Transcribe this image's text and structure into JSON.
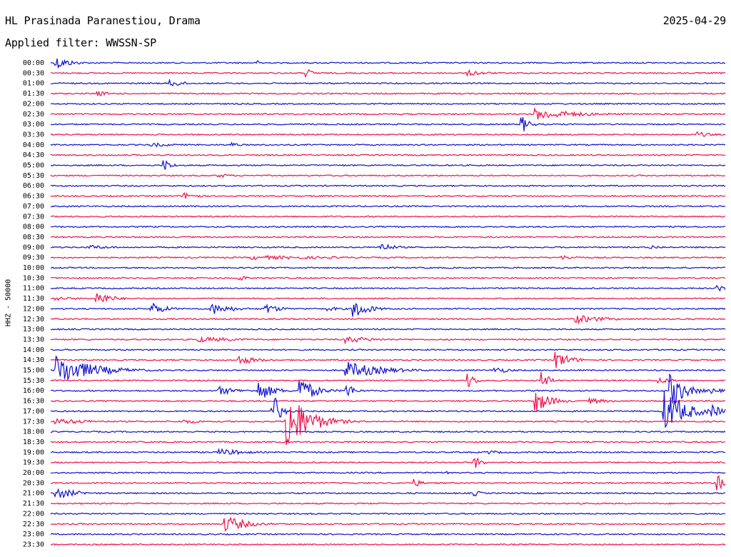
{
  "header": {
    "station": "HL Prasinada Paranestiou, Drama",
    "date": "2025-04-29",
    "filter": "Applied filter: WWSSN-SP"
  },
  "chart_data": {
    "type": "line",
    "title": "HL Prasinada Paranestiou, Drama",
    "ylabel": "HHZ - 50000",
    "colors": [
      "#1010d0",
      "#f0104a"
    ],
    "rows": [
      {
        "label": "00:00",
        "color": "#1010d0",
        "events": [
          {
            "t": 0.01,
            "amp": 9,
            "w": 0.02
          },
          {
            "t": 0.31,
            "amp": 3,
            "w": 0.01
          }
        ]
      },
      {
        "label": "00:30",
        "color": "#f0104a",
        "events": [
          {
            "t": 0.38,
            "amp": 6,
            "w": 0.01
          },
          {
            "t": 0.62,
            "amp": 4,
            "w": 0.03
          }
        ]
      },
      {
        "label": "01:00",
        "color": "#1010d0",
        "events": [
          {
            "t": 0.18,
            "amp": 5,
            "w": 0.02
          }
        ]
      },
      {
        "label": "01:30",
        "color": "#f0104a",
        "events": [
          {
            "t": 0.07,
            "amp": 4,
            "w": 0.02
          }
        ]
      },
      {
        "label": "02:00",
        "color": "#1010d0",
        "events": []
      },
      {
        "label": "02:30",
        "color": "#f0104a",
        "events": [
          {
            "t": 0.72,
            "amp": 8,
            "w": 0.06
          }
        ]
      },
      {
        "label": "03:00",
        "color": "#1010d0",
        "events": [
          {
            "t": 0.7,
            "amp": 11,
            "w": 0.01
          }
        ]
      },
      {
        "label": "03:30",
        "color": "#f0104a",
        "events": [
          {
            "t": 0.96,
            "amp": 4,
            "w": 0.02
          }
        ]
      },
      {
        "label": "04:00",
        "color": "#1010d0",
        "events": [
          {
            "t": 0.15,
            "amp": 3,
            "w": 0.04
          },
          {
            "t": 0.27,
            "amp": 4,
            "w": 0.01
          }
        ]
      },
      {
        "label": "04:30",
        "color": "#f0104a",
        "events": []
      },
      {
        "label": "05:00",
        "color": "#1010d0",
        "events": [
          {
            "t": 0.17,
            "amp": 8,
            "w": 0.01
          }
        ]
      },
      {
        "label": "05:30",
        "color": "#f0104a",
        "events": [
          {
            "t": 0.25,
            "amp": 3,
            "w": 0.02
          }
        ]
      },
      {
        "label": "06:00",
        "color": "#1010d0",
        "events": []
      },
      {
        "label": "06:30",
        "color": "#f0104a",
        "events": [
          {
            "t": 0.2,
            "amp": 5,
            "w": 0.02
          }
        ]
      },
      {
        "label": "07:00",
        "color": "#1010d0",
        "events": []
      },
      {
        "label": "07:30",
        "color": "#f0104a",
        "events": []
      },
      {
        "label": "08:00",
        "color": "#1010d0",
        "events": []
      },
      {
        "label": "08:30",
        "color": "#f0104a",
        "events": []
      },
      {
        "label": "09:00",
        "color": "#1010d0",
        "events": [
          {
            "t": 0.06,
            "amp": 3,
            "w": 0.04
          },
          {
            "t": 0.49,
            "amp": 6,
            "w": 0.02
          },
          {
            "t": 0.89,
            "amp": 3,
            "w": 0.02
          }
        ]
      },
      {
        "label": "09:30",
        "color": "#f0104a",
        "events": [
          {
            "t": 0.3,
            "amp": 3,
            "w": 0.15
          },
          {
            "t": 0.76,
            "amp": 3,
            "w": 0.03
          }
        ]
      },
      {
        "label": "10:00",
        "color": "#1010d0",
        "events": []
      },
      {
        "label": "10:30",
        "color": "#f0104a",
        "events": [
          {
            "t": 0.28,
            "amp": 5,
            "w": 0.01
          }
        ]
      },
      {
        "label": "11:00",
        "color": "#1010d0",
        "events": [
          {
            "t": 0.99,
            "amp": 5,
            "w": 0.01
          }
        ]
      },
      {
        "label": "11:30",
        "color": "#f0104a",
        "events": [
          {
            "t": 0.01,
            "amp": 3,
            "w": 0.03
          },
          {
            "t": 0.07,
            "amp": 10,
            "w": 0.02
          }
        ]
      },
      {
        "label": "12:00",
        "color": "#1010d0",
        "events": [
          {
            "t": 0.15,
            "amp": 9,
            "w": 0.02
          },
          {
            "t": 0.24,
            "amp": 8,
            "w": 0.03
          },
          {
            "t": 0.32,
            "amp": 7,
            "w": 0.02
          },
          {
            "t": 0.41,
            "amp": 3,
            "w": 0.03
          },
          {
            "t": 0.45,
            "amp": 14,
            "w": 0.02
          }
        ]
      },
      {
        "label": "12:30",
        "color": "#f0104a",
        "events": [
          {
            "t": 0.78,
            "amp": 6,
            "w": 0.04
          }
        ]
      },
      {
        "label": "13:00",
        "color": "#1010d0",
        "events": []
      },
      {
        "label": "13:30",
        "color": "#f0104a",
        "events": [
          {
            "t": 0.22,
            "amp": 4,
            "w": 0.06
          },
          {
            "t": 0.44,
            "amp": 5,
            "w": 0.04
          }
        ]
      },
      {
        "label": "14:00",
        "color": "#1010d0",
        "events": []
      },
      {
        "label": "14:30",
        "color": "#f0104a",
        "events": [
          {
            "t": 0.28,
            "amp": 6,
            "w": 0.03
          },
          {
            "t": 0.75,
            "amp": 12,
            "w": 0.02
          }
        ]
      },
      {
        "label": "15:00",
        "color": "#1010d0",
        "events": [
          {
            "t": 0.01,
            "amp": 22,
            "w": 0.05
          },
          {
            "t": 0.44,
            "amp": 12,
            "w": 0.05
          },
          {
            "t": 0.66,
            "amp": 5,
            "w": 0.02
          }
        ]
      },
      {
        "label": "15:30",
        "color": "#f0104a",
        "events": [
          {
            "t": 0.62,
            "amp": 10,
            "w": 0.01
          },
          {
            "t": 0.73,
            "amp": 12,
            "w": 0.01
          },
          {
            "t": 0.9,
            "amp": 5,
            "w": 0.02
          }
        ]
      },
      {
        "label": "16:00",
        "color": "#1010d0",
        "events": [
          {
            "t": 0.25,
            "amp": 6,
            "w": 0.03
          },
          {
            "t": 0.31,
            "amp": 14,
            "w": 0.02
          },
          {
            "t": 0.37,
            "amp": 20,
            "w": 0.02
          },
          {
            "t": 0.44,
            "amp": 11,
            "w": 0.01
          },
          {
            "t": 0.92,
            "amp": 24,
            "w": 0.02
          },
          {
            "t": 0.98,
            "amp": 4,
            "w": 0.02
          }
        ]
      },
      {
        "label": "16:30",
        "color": "#f0104a",
        "events": [
          {
            "t": 0.72,
            "amp": 16,
            "w": 0.02
          },
          {
            "t": 0.8,
            "amp": 4,
            "w": 0.03
          }
        ]
      },
      {
        "label": "17:00",
        "color": "#1010d0",
        "events": [
          {
            "t": 0.33,
            "amp": 25,
            "w": 0.01
          },
          {
            "t": 0.91,
            "amp": 30,
            "w": 0.03
          },
          {
            "t": 0.98,
            "amp": 9,
            "w": 0.02
          }
        ]
      },
      {
        "label": "17:30",
        "color": "#f0104a",
        "events": [
          {
            "t": 0.01,
            "amp": 4,
            "w": 0.06
          },
          {
            "t": 0.2,
            "amp": 3,
            "w": 0.03
          },
          {
            "t": 0.35,
            "amp": 45,
            "w": 0.03
          }
        ]
      },
      {
        "label": "18:00",
        "color": "#1010d0",
        "events": []
      },
      {
        "label": "18:30",
        "color": "#f0104a",
        "events": []
      },
      {
        "label": "19:00",
        "color": "#1010d0",
        "events": [
          {
            "t": 0.25,
            "amp": 5,
            "w": 0.04
          },
          {
            "t": 0.65,
            "amp": 3,
            "w": 0.02
          }
        ]
      },
      {
        "label": "19:30",
        "color": "#f0104a",
        "events": [
          {
            "t": 0.63,
            "amp": 8,
            "w": 0.01
          }
        ]
      },
      {
        "label": "20:00",
        "color": "#1010d0",
        "events": [
          {
            "t": 0.59,
            "amp": 3,
            "w": 0.01
          }
        ]
      },
      {
        "label": "20:30",
        "color": "#f0104a",
        "events": [
          {
            "t": 0.54,
            "amp": 6,
            "w": 0.01
          },
          {
            "t": 0.99,
            "amp": 12,
            "w": 0.01
          }
        ]
      },
      {
        "label": "21:00",
        "color": "#1010d0",
        "events": [
          {
            "t": 0.01,
            "amp": 8,
            "w": 0.03
          },
          {
            "t": 0.63,
            "amp": 4,
            "w": 0.01
          }
        ]
      },
      {
        "label": "21:30",
        "color": "#f0104a",
        "events": []
      },
      {
        "label": "22:00",
        "color": "#1010d0",
        "events": []
      },
      {
        "label": "22:30",
        "color": "#f0104a",
        "events": [
          {
            "t": 0.26,
            "amp": 12,
            "w": 0.03
          }
        ]
      },
      {
        "label": "23:00",
        "color": "#1010d0",
        "events": []
      },
      {
        "label": "23:30",
        "color": "#f0104a",
        "events": []
      }
    ]
  }
}
